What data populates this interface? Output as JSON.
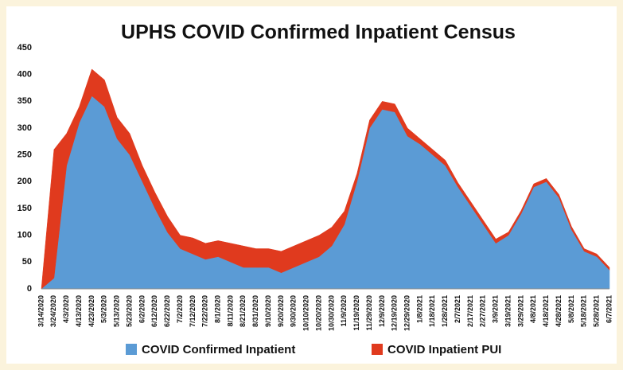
{
  "chart_data": {
    "type": "stacked_area",
    "title": "UPHS COVID Confirmed Inpatient Census",
    "categories": [
      "3/14/2020",
      "3/24/2020",
      "4/3/2020",
      "4/13/2020",
      "4/23/2020",
      "5/3/2020",
      "5/13/2020",
      "5/23/2020",
      "6/2/2020",
      "6/12/2020",
      "6/22/2020",
      "7/2/2020",
      "7/12/2020",
      "7/22/2020",
      "8/1/2020",
      "8/11/2020",
      "8/21/2020",
      "8/31/2020",
      "9/10/2020",
      "9/20/2020",
      "9/30/2020",
      "10/10/2020",
      "10/20/2020",
      "10/30/2020",
      "11/9/2020",
      "11/19/2020",
      "11/29/2020",
      "12/9/2020",
      "12/19/2020",
      "12/29/2020",
      "1/8/2021",
      "1/18/2021",
      "1/28/2021",
      "2/7/2021",
      "2/17/2021",
      "2/27/2021",
      "3/9/2021",
      "3/19/2021",
      "3/29/2021",
      "4/8/2021",
      "4/18/2021",
      "4/28/2021",
      "5/8/2021",
      "5/18/2021",
      "5/28/2021",
      "6/7/2021"
    ],
    "series": [
      {
        "name": "COVID Confirmed Inpatient",
        "color": "#5b9bd5",
        "values": [
          0,
          20,
          230,
          310,
          360,
          340,
          280,
          250,
          200,
          150,
          105,
          75,
          65,
          55,
          60,
          50,
          40,
          40,
          40,
          30,
          40,
          50,
          60,
          80,
          120,
          200,
          300,
          335,
          330,
          285,
          270,
          250,
          230,
          190,
          155,
          120,
          85,
          100,
          140,
          190,
          200,
          170,
          110,
          70,
          60,
          35
        ]
      },
      {
        "name": "COVID Inpatient PUI",
        "color": "#e03a1e",
        "values": [
          0,
          240,
          60,
          30,
          50,
          50,
          40,
          40,
          30,
          30,
          30,
          25,
          30,
          30,
          30,
          35,
          40,
          35,
          35,
          40,
          40,
          40,
          40,
          35,
          25,
          15,
          15,
          15,
          15,
          15,
          10,
          10,
          10,
          8,
          8,
          8,
          8,
          6,
          6,
          6,
          6,
          6,
          6,
          5,
          5,
          5
        ]
      }
    ],
    "ylim": [
      0,
      450
    ],
    "yticks": [
      0,
      50,
      100,
      150,
      200,
      250,
      300,
      350,
      400,
      450
    ],
    "grid": false
  }
}
